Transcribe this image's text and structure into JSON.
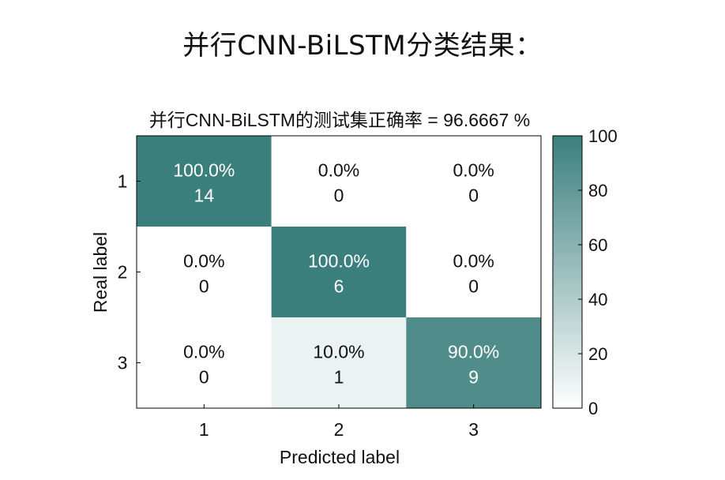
{
  "page": {
    "heading": "并行CNN-BiLSTM分类结果："
  },
  "colors": {
    "low": "#ffffff",
    "high": "#3b7f7d",
    "dark_text": "#111111",
    "light_text": "#ffffff",
    "axis": "#000000"
  },
  "chart_data": {
    "type": "heatmap",
    "title": "并行CNN-BiLSTM的测试集正确率 = 96.6667 %",
    "xlabel": "Predicted label",
    "ylabel": "Real label",
    "x_categories": [
      "1",
      "2",
      "3"
    ],
    "y_categories": [
      "1",
      "2",
      "3"
    ],
    "percent_labels": [
      [
        "100.0%",
        "0.0%",
        "0.0%"
      ],
      [
        "0.0%",
        "100.0%",
        "0.0%"
      ],
      [
        "0.0%",
        "10.0%",
        "90.0%"
      ]
    ],
    "percents": [
      [
        100,
        0,
        0
      ],
      [
        0,
        100,
        0
      ],
      [
        0,
        10,
        90
      ]
    ],
    "counts": [
      [
        14,
        0,
        0
      ],
      [
        0,
        6,
        0
      ],
      [
        0,
        1,
        9
      ]
    ],
    "colorbar": {
      "range": [
        0,
        100
      ],
      "ticks": [
        "0",
        "20",
        "40",
        "60",
        "80",
        "100"
      ]
    }
  }
}
